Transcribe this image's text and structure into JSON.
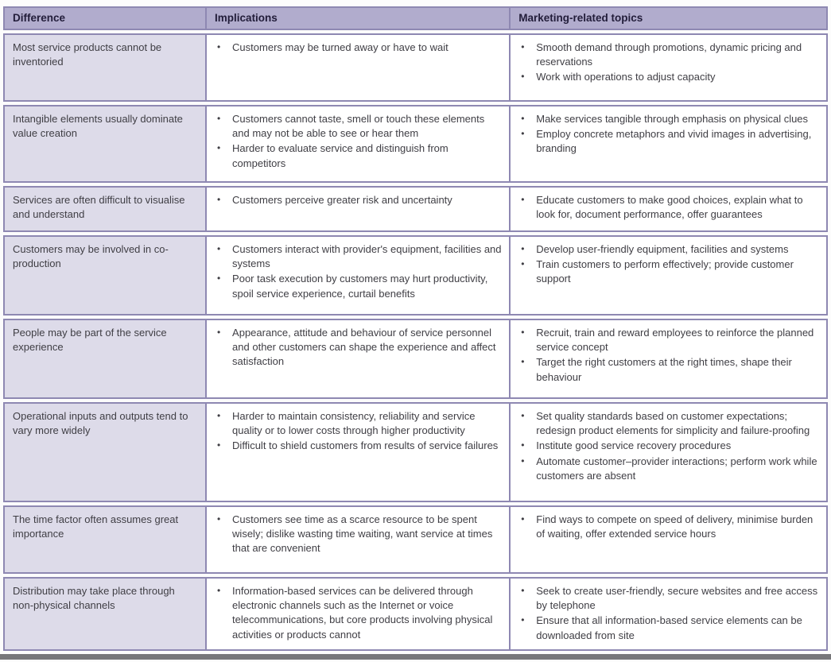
{
  "colors": {
    "header-bg": "#b1accd",
    "col1-bg": "#dddbe9",
    "border": "#8e88b2",
    "header-text": "#221d3a",
    "body-text": "#3f3e44",
    "rule": "#77777a"
  },
  "table": {
    "columns": [
      "Difference",
      "Implications",
      "Marketing-related topics"
    ],
    "rows": [
      {
        "difference": "Most service products cannot be inventoried",
        "implications": [
          "Customers may be turned away or have to wait"
        ],
        "topics": [
          "Smooth demand through promotions, dynamic pricing and reservations",
          "Work with operations to adjust capacity"
        ]
      },
      {
        "difference": "Intangible elements usually dominate value creation",
        "implications": [
          "Customers cannot taste, smell or touch these elements and may not be able to see or hear them",
          "Harder to evaluate service and distinguish from competitors"
        ],
        "topics": [
          "Make services tangible through emphasis on physical clues",
          "Employ concrete metaphors and vivid images in advertising, branding"
        ]
      },
      {
        "difference": "Services are often difficult to visualise and understand",
        "implications": [
          "Customers perceive greater risk and uncertainty"
        ],
        "topics": [
          "Educate customers to make good choices, explain what to look for, document performance, offer guarantees"
        ]
      },
      {
        "difference": "Customers may be involved in co-production",
        "implications": [
          "Customers interact with provider's equipment, facilities and systems",
          "Poor task execution by customers may hurt productivity, spoil service experience, curtail benefits"
        ],
        "topics": [
          "Develop user-friendly equipment, facilities and systems",
          "Train customers to perform effectively; provide customer support"
        ]
      },
      {
        "difference": "People may be part of the service experience",
        "implications": [
          "Appearance, attitude and behaviour of service personnel and other customers can shape the experience and affect satisfaction"
        ],
        "topics": [
          "Recruit, train and reward employees to reinforce the planned service concept",
          "Target the right customers at the right times, shape their behaviour"
        ]
      },
      {
        "difference": "Operational inputs and outputs tend to vary more widely",
        "implications": [
          "Harder to maintain consistency, reliability and service quality or to lower costs through higher productivity",
          "Difficult to shield customers from results of service failures"
        ],
        "topics": [
          "Set quality standards based on customer expectations; redesign product elements for simplicity and failure-proofing",
          "Institute good service recovery procedures",
          "Automate customer–provider interactions; perform work while customers are absent"
        ]
      },
      {
        "difference": "The time factor often assumes great importance",
        "implications": [
          "Customers see time as a scarce resource to be spent wisely; dislike wasting time waiting, want service at times that are convenient"
        ],
        "topics": [
          "Find ways to compete on speed of delivery, minimise burden of waiting, offer extended service hours"
        ]
      },
      {
        "difference": "Distribution may take place through non-physical channels",
        "implications": [
          "Information-based services can be delivered through electronic channels such as the Internet or voice telecommunications, but core products involving physical activities or products cannot"
        ],
        "topics": [
          "Seek to create user-friendly, secure websites and free access by telephone",
          "Ensure that all information-based service elements can be downloaded from site"
        ]
      }
    ]
  }
}
